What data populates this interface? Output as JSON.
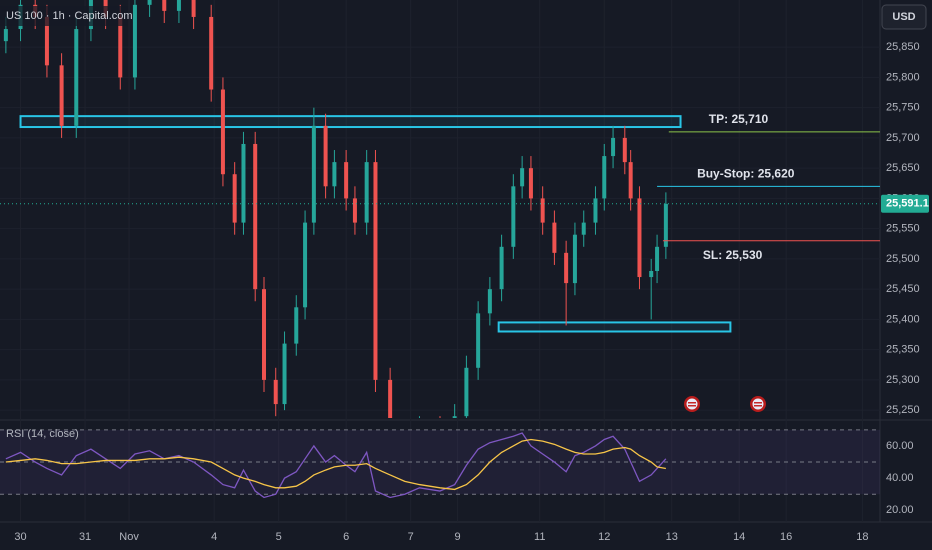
{
  "chart_data": [
    {
      "type": "candlestick",
      "title": "US 100 · 1h · Capital.com",
      "currency": "USD",
      "x": [
        2,
        7,
        12,
        16,
        21,
        26,
        31,
        36,
        41,
        46,
        51,
        56,
        61,
        66,
        72,
        76,
        80,
        83,
        87,
        90,
        94,
        97,
        101,
        104,
        107,
        111,
        114,
        118,
        121,
        125,
        128,
        133,
        138,
        143,
        150,
        155,
        159,
        163,
        167,
        171,
        175,
        178,
        181,
        185,
        189,
        193,
        196,
        199,
        203,
        206,
        209,
        213,
        215,
        218,
        222,
        224,
        227
      ],
      "open": [
        25860,
        25880,
        25920,
        25900,
        25820,
        25720,
        25880,
        25940,
        25900,
        25800,
        25920,
        25940,
        25910,
        25930,
        25900,
        25780,
        25640,
        25560,
        25690,
        25450,
        25300,
        25260,
        25360,
        25420,
        25560,
        25720,
        25620,
        25660,
        25600,
        25560,
        25660,
        25300,
        25210,
        25190,
        25220,
        25200,
        25240,
        25320,
        25410,
        25450,
        25520,
        25620,
        25650,
        25600,
        25560,
        25510,
        25460,
        25540,
        25560,
        25600,
        25670,
        25700,
        25660,
        25600,
        25470,
        25480,
        25520
      ],
      "high": [
        25900,
        25940,
        25940,
        25920,
        25840,
        25900,
        25960,
        25960,
        25920,
        25940,
        25960,
        25960,
        25950,
        25950,
        25920,
        25800,
        25660,
        25710,
        25710,
        25470,
        25320,
        25380,
        25440,
        25580,
        25750,
        25740,
        25680,
        25680,
        25620,
        25680,
        25680,
        25320,
        25230,
        25240,
        25240,
        25260,
        25340,
        25430,
        25470,
        25540,
        25640,
        25670,
        25670,
        25620,
        25580,
        25530,
        25560,
        25580,
        25620,
        25690,
        25720,
        25720,
        25680,
        25620,
        25500,
        25540,
        25610
      ],
      "low": [
        25840,
        25860,
        25880,
        25800,
        25700,
        25700,
        25860,
        25880,
        25780,
        25780,
        25900,
        25890,
        25890,
        25880,
        25760,
        25620,
        25540,
        25540,
        25430,
        25280,
        25240,
        25250,
        25340,
        25400,
        25540,
        25600,
        25600,
        25580,
        25540,
        25540,
        25280,
        25190,
        25170,
        25170,
        25180,
        25180,
        25220,
        25300,
        25390,
        25430,
        25500,
        25600,
        25580,
        25540,
        25490,
        25390,
        25440,
        25520,
        25540,
        25580,
        25650,
        25640,
        25580,
        25450,
        25400,
        25460,
        25500
      ],
      "close": [
        25880,
        25920,
        25900,
        25820,
        25720,
        25880,
        25940,
        25900,
        25800,
        25920,
        25940,
        25910,
        25930,
        25900,
        25780,
        25640,
        25560,
        25690,
        25450,
        25300,
        25260,
        25360,
        25420,
        25560,
        25720,
        25620,
        25660,
        25600,
        25560,
        25660,
        25300,
        25210,
        25190,
        25220,
        25200,
        25240,
        25320,
        25410,
        25450,
        25520,
        25620,
        25650,
        25600,
        25560,
        25510,
        25460,
        25540,
        25560,
        25600,
        25670,
        25700,
        25660,
        25600,
        25470,
        25480,
        25520,
        25591
      ],
      "up_color": "#26a69a",
      "down_color": "#ef5350",
      "xlim": [
        0,
        300
      ],
      "xticks": [
        {
          "value": 7,
          "label": "30"
        },
        {
          "value": 29,
          "label": "31"
        },
        {
          "value": 44,
          "label": "Nov"
        },
        {
          "value": 73,
          "label": "4"
        },
        {
          "value": 95,
          "label": "5"
        },
        {
          "value": 118,
          "label": "6"
        },
        {
          "value": 140,
          "label": "7"
        },
        {
          "value": 156,
          "label": "9"
        },
        {
          "value": 184,
          "label": "11"
        },
        {
          "value": 206,
          "label": "12"
        },
        {
          "value": 229,
          "label": "13"
        },
        {
          "value": 252,
          "label": "14"
        },
        {
          "value": 268,
          "label": "16"
        },
        {
          "value": 294,
          "label": "18"
        }
      ],
      "ylim": [
        25237,
        25928
      ],
      "yticks": [
        {
          "value": 25250,
          "label": "25,250"
        },
        {
          "value": 25300,
          "label": "25,300"
        },
        {
          "value": 25350,
          "label": "25,350"
        },
        {
          "value": 25400,
          "label": "25,400"
        },
        {
          "value": 25450,
          "label": "25,450"
        },
        {
          "value": 25500,
          "label": "25,500"
        },
        {
          "value": 25550,
          "label": "25,550"
        },
        {
          "value": 25600,
          "label": "25,600"
        },
        {
          "value": 25650,
          "label": "25,650"
        },
        {
          "value": 25700,
          "label": "25,700"
        },
        {
          "value": 25750,
          "label": "25,750"
        },
        {
          "value": 25800,
          "label": "25,800"
        },
        {
          "value": 25850,
          "label": "25,850"
        }
      ],
      "grid": true,
      "last_price": {
        "value": 25591.1,
        "label": "25,591.1",
        "color": "#22ab94"
      },
      "zones": [
        {
          "range": [
            25718,
            25736
          ],
          "xrange": [
            7,
            232
          ],
          "color": "#29c5e6"
        },
        {
          "range": [
            25380,
            25395
          ],
          "xrange": [
            170,
            249
          ],
          "color": "#29c5e6"
        }
      ],
      "levels": [
        {
          "label": "TP: 25,710",
          "value": 25710,
          "x": 228,
          "color": "#8bc34a"
        },
        {
          "label": "Buy-Stop: 25,620",
          "value": 25620,
          "x": 224,
          "color": "#29c5e6"
        },
        {
          "label": "SL: 25,530",
          "value": 25530,
          "x": 226,
          "color": "#ef5350"
        }
      ]
    },
    {
      "type": "line",
      "title": "RSI (14, close)",
      "x": [
        2,
        7,
        12,
        16,
        21,
        26,
        31,
        36,
        41,
        46,
        51,
        56,
        61,
        66,
        72,
        76,
        80,
        83,
        87,
        90,
        94,
        97,
        101,
        104,
        107,
        111,
        114,
        118,
        121,
        125,
        128,
        133,
        138,
        143,
        150,
        155,
        159,
        163,
        167,
        171,
        175,
        178,
        181,
        185,
        189,
        193,
        196,
        199,
        203,
        206,
        209,
        213,
        215,
        218,
        222,
        224,
        227
      ],
      "series": [
        {
          "color": "#7e57c2",
          "values": [
            52,
            56,
            50,
            46,
            42,
            54,
            58,
            52,
            46,
            55,
            57,
            52,
            54,
            50,
            42,
            36,
            34,
            45,
            32,
            28,
            30,
            40,
            44,
            52,
            60,
            50,
            54,
            48,
            44,
            56,
            32,
            28,
            30,
            34,
            32,
            36,
            48,
            58,
            62,
            64,
            66,
            68,
            60,
            55,
            50,
            44,
            54,
            56,
            60,
            64,
            66,
            58,
            50,
            38,
            42,
            46,
            52
          ]
        },
        {
          "color": "#f7c548",
          "values": [
            50,
            51,
            52,
            51,
            49,
            49,
            50,
            51,
            51,
            51,
            52,
            52,
            53,
            52,
            50,
            46,
            42,
            40,
            38,
            36,
            34,
            34,
            35,
            38,
            42,
            45,
            47,
            48,
            48,
            49,
            46,
            42,
            38,
            36,
            34,
            33,
            36,
            42,
            50,
            56,
            60,
            63,
            64,
            63,
            61,
            58,
            56,
            55,
            55,
            56,
            58,
            59,
            58,
            54,
            50,
            47,
            46
          ]
        }
      ],
      "xlim": [
        0,
        300
      ],
      "ylim": [
        14,
        73
      ],
      "yticks": [
        {
          "value": 20,
          "label": "20.00"
        },
        {
          "value": 40,
          "label": "40.00"
        },
        {
          "value": 60,
          "label": "60.00"
        }
      ],
      "levels": [
        30,
        50,
        70
      ]
    }
  ]
}
